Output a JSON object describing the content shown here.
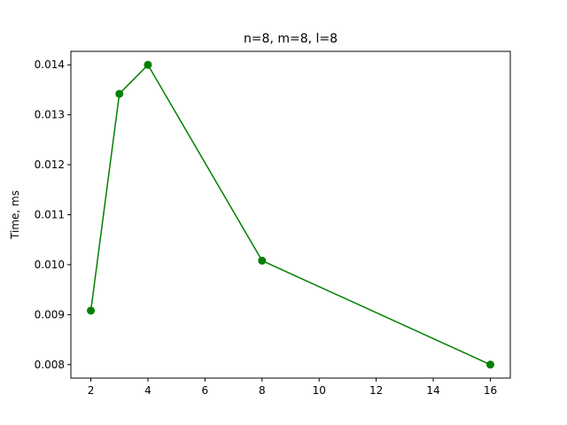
{
  "chart_data": {
    "type": "line",
    "title": "n=8, m=8, l=8",
    "xlabel": "",
    "ylabel": "Time, ms",
    "x": [
      2,
      3,
      4,
      8,
      16
    ],
    "series": [
      {
        "values": [
          0.00908,
          0.01342,
          0.014,
          0.01008,
          0.008
        ],
        "color": "#008000",
        "marker": "circle"
      }
    ],
    "xlim": [
      1.3,
      16.7
    ],
    "ylim": [
      0.00773,
      0.01427
    ],
    "xticks": [
      2,
      4,
      6,
      8,
      10,
      12,
      14,
      16
    ],
    "xtick_labels": [
      "2",
      "4",
      "6",
      "8",
      "10",
      "12",
      "14",
      "16"
    ],
    "yticks": [
      0.008,
      0.009,
      0.01,
      0.011,
      0.012,
      0.013,
      0.014
    ],
    "ytick_labels": [
      "0.008",
      "0.009",
      "0.010",
      "0.011",
      "0.012",
      "0.013",
      "0.014"
    ],
    "grid": false,
    "legend": false
  }
}
